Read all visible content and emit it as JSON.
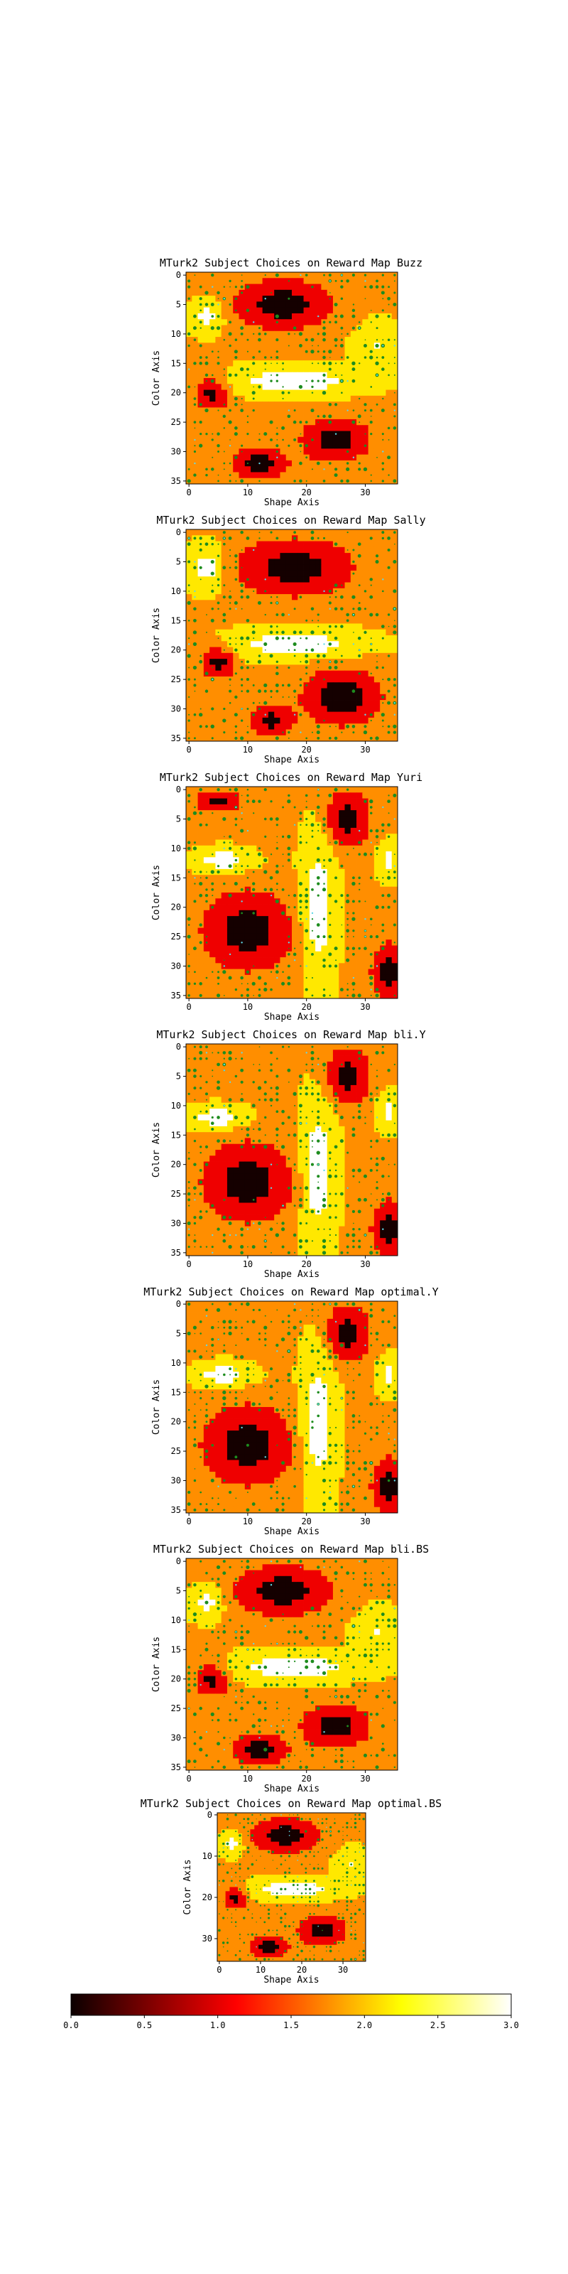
{
  "chart_data": [
    {
      "type": "heatmap",
      "title": "MTurk2 Subject Choices on Reward Map Buzz",
      "xlabel": "Shape Axis",
      "ylabel": "Color Axis",
      "xlim": [
        0,
        35
      ],
      "ylim": [
        35,
        0
      ],
      "xticks": [
        "0",
        "10",
        "20",
        "30"
      ],
      "yticks": [
        "0",
        "5",
        "10",
        "15",
        "20",
        "25",
        "30",
        "35"
      ],
      "grid_size": [
        36,
        36
      ],
      "value_range": [
        0,
        3
      ],
      "colormap": "hot",
      "overlay": "green dots (subject choices, size = frequency) and cyan dots",
      "blobs": [
        {
          "x": 16,
          "y": 5,
          "rx": 9,
          "ry": 4.5,
          "v": 0.1
        },
        {
          "x": 25,
          "y": 28,
          "rx": 6,
          "ry": 4,
          "v": 0.1
        },
        {
          "x": 12,
          "y": 32,
          "rx": 5,
          "ry": 3,
          "v": 0.15
        },
        {
          "x": 4,
          "y": 20,
          "rx": 3,
          "ry": 3,
          "v": 0.15
        },
        {
          "x": 18,
          "y": 18,
          "rx": 12,
          "ry": 2.5,
          "v": 3.0
        },
        {
          "x": 3,
          "y": 7,
          "rx": 3,
          "ry": 3,
          "v": 2.8
        },
        {
          "x": 32,
          "y": 12,
          "rx": 4,
          "ry": 4,
          "v": 2.6
        }
      ]
    },
    {
      "type": "heatmap",
      "title": "MTurk2 Subject Choices on Reward Map Sally",
      "xlabel": "Shape Axis",
      "ylabel": "Color Axis",
      "xlim": [
        0,
        35
      ],
      "ylim": [
        35,
        0
      ],
      "xticks": [
        "0",
        "10",
        "20",
        "30"
      ],
      "yticks": [
        "0",
        "5",
        "10",
        "15",
        "20",
        "25",
        "30",
        "35"
      ],
      "grid_size": [
        36,
        36
      ],
      "value_range": [
        0,
        3
      ],
      "colormap": "hot",
      "overlay": "green dots (subject choices, size = frequency) and cyan dots",
      "blobs": [
        {
          "x": 18,
          "y": 6,
          "rx": 10,
          "ry": 5,
          "v": 0.05
        },
        {
          "x": 26,
          "y": 28,
          "rx": 7,
          "ry": 5,
          "v": 0.05
        },
        {
          "x": 5,
          "y": 22,
          "rx": 3,
          "ry": 3,
          "v": 0.1
        },
        {
          "x": 14,
          "y": 32,
          "rx": 4,
          "ry": 3,
          "v": 0.3
        },
        {
          "x": 18,
          "y": 19,
          "rx": 12,
          "ry": 2.5,
          "v": 3.0
        },
        {
          "x": 3,
          "y": 6,
          "rx": 3,
          "ry": 4,
          "v": 2.8
        }
      ]
    },
    {
      "type": "heatmap",
      "title": "MTurk2 Subject Choices on Reward Map Yuri",
      "xlabel": "Shape Axis",
      "ylabel": "Color Axis",
      "xlim": [
        0,
        35
      ],
      "ylim": [
        35,
        0
      ],
      "xticks": [
        "0",
        "10",
        "20",
        "30"
      ],
      "yticks": [
        "0",
        "5",
        "10",
        "15",
        "20",
        "25",
        "30",
        "35"
      ],
      "grid_size": [
        36,
        36
      ],
      "value_range": [
        0,
        3
      ],
      "colormap": "hot",
      "overlay": "green dots (subject choices, size = frequency) and cyan dots",
      "blobs": [
        {
          "x": 10,
          "y": 24,
          "rx": 8,
          "ry": 7,
          "v": 0.05
        },
        {
          "x": 27,
          "y": 5,
          "rx": 4,
          "ry": 5,
          "v": 0.1
        },
        {
          "x": 34,
          "y": 31,
          "rx": 3,
          "ry": 5,
          "v": 0.05
        },
        {
          "x": 5,
          "y": 2,
          "rx": 4,
          "ry": 2,
          "v": 0.3
        },
        {
          "x": 22,
          "y": 20,
          "rx": 3,
          "ry": 13,
          "v": 3.0
        },
        {
          "x": 6,
          "y": 12,
          "rx": 5,
          "ry": 2,
          "v": 3.0
        },
        {
          "x": 34,
          "y": 12,
          "rx": 2,
          "ry": 3,
          "v": 2.8
        }
      ]
    },
    {
      "type": "heatmap",
      "title": "MTurk2 Subject Choices on Reward Map bli.Y",
      "xlabel": "Shape Axis",
      "ylabel": "Color Axis",
      "xlim": [
        0,
        35
      ],
      "ylim": [
        35,
        0
      ],
      "xticks": [
        "0",
        "10",
        "20",
        "30"
      ],
      "yticks": [
        "0",
        "5",
        "10",
        "15",
        "20",
        "25",
        "30",
        "35"
      ],
      "grid_size": [
        36,
        36
      ],
      "value_range": [
        0,
        3
      ],
      "colormap": "hot",
      "overlay": "green dots (subject choices, size = frequency) and cyan dots",
      "blobs": [
        {
          "x": 10,
          "y": 23,
          "rx": 8,
          "ry": 7,
          "v": 0.05
        },
        {
          "x": 27,
          "y": 5,
          "rx": 4,
          "ry": 5,
          "v": 0.1
        },
        {
          "x": 34,
          "y": 31,
          "rx": 3,
          "ry": 5,
          "v": 0.05
        },
        {
          "x": 22,
          "y": 21,
          "rx": 3,
          "ry": 13,
          "v": 3.0
        },
        {
          "x": 5,
          "y": 12,
          "rx": 5,
          "ry": 2,
          "v": 3.0
        },
        {
          "x": 34,
          "y": 11,
          "rx": 2,
          "ry": 3,
          "v": 2.8
        }
      ]
    },
    {
      "type": "heatmap",
      "title": "MTurk2 Subject Choices on Reward Map optimal.Y",
      "xlabel": "Shape Axis",
      "ylabel": "Color Axis",
      "xlim": [
        0,
        35
      ],
      "ylim": [
        35,
        0
      ],
      "xticks": [
        "0",
        "10",
        "20",
        "30"
      ],
      "yticks": [
        "0",
        "5",
        "10",
        "15",
        "20",
        "25",
        "30",
        "35"
      ],
      "grid_size": [
        36,
        36
      ],
      "value_range": [
        0,
        3
      ],
      "colormap": "hot",
      "overlay": "green dots (subject choices, size = frequency) and cyan dots",
      "blobs": [
        {
          "x": 10,
          "y": 24,
          "rx": 8,
          "ry": 7,
          "v": 0.05
        },
        {
          "x": 27,
          "y": 5,
          "rx": 4,
          "ry": 5,
          "v": 0.1
        },
        {
          "x": 34,
          "y": 31,
          "rx": 3,
          "ry": 5,
          "v": 0.05
        },
        {
          "x": 22,
          "y": 20,
          "rx": 3,
          "ry": 13,
          "v": 3.0
        },
        {
          "x": 6,
          "y": 12,
          "rx": 5,
          "ry": 2,
          "v": 3.0
        },
        {
          "x": 34,
          "y": 12,
          "rx": 2,
          "ry": 3,
          "v": 2.8
        }
      ]
    },
    {
      "type": "heatmap",
      "title": "MTurk2 Subject Choices on Reward Map bli.BS",
      "xlabel": "Shape Axis",
      "ylabel": "Color Axis",
      "xlim": [
        0,
        35
      ],
      "ylim": [
        35,
        0
      ],
      "xticks": [
        "0",
        "10",
        "20",
        "30"
      ],
      "yticks": [
        "0",
        "5",
        "10",
        "15",
        "20",
        "25",
        "30",
        "35"
      ],
      "grid_size": [
        36,
        36
      ],
      "value_range": [
        0,
        3
      ],
      "colormap": "hot",
      "overlay": "green dots (subject choices, size = frequency) and cyan dots",
      "blobs": [
        {
          "x": 16,
          "y": 5,
          "rx": 9,
          "ry": 4.5,
          "v": 0.1
        },
        {
          "x": 25,
          "y": 28,
          "rx": 6,
          "ry": 4,
          "v": 0.1
        },
        {
          "x": 12,
          "y": 32,
          "rx": 5,
          "ry": 3,
          "v": 0.15
        },
        {
          "x": 4,
          "y": 20,
          "rx": 3,
          "ry": 3,
          "v": 0.15
        },
        {
          "x": 18,
          "y": 18,
          "rx": 12,
          "ry": 2.5,
          "v": 3.0
        },
        {
          "x": 3,
          "y": 7,
          "rx": 3,
          "ry": 3,
          "v": 2.8
        },
        {
          "x": 32,
          "y": 12,
          "rx": 4,
          "ry": 4,
          "v": 2.6
        }
      ]
    },
    {
      "type": "heatmap",
      "title": "MTurk2 Subject Choices on Reward Map optimal.BS",
      "xlabel": "Shape Axis",
      "ylabel": "Color Axis",
      "xlim": [
        0,
        35
      ],
      "ylim": [
        35,
        0
      ],
      "xticks": [
        "0",
        "10",
        "20",
        "30"
      ],
      "yticks": [
        "0",
        "10",
        "20",
        "30"
      ],
      "grid_size": [
        36,
        36
      ],
      "value_range": [
        0,
        3
      ],
      "colormap": "hot",
      "overlay": "green dots (subject choices, size = frequency) and cyan dots",
      "blobs": [
        {
          "x": 16,
          "y": 5,
          "rx": 9,
          "ry": 4.5,
          "v": 0.1
        },
        {
          "x": 25,
          "y": 28,
          "rx": 6,
          "ry": 4,
          "v": 0.1
        },
        {
          "x": 12,
          "y": 32,
          "rx": 5,
          "ry": 3,
          "v": 0.15
        },
        {
          "x": 4,
          "y": 20,
          "rx": 3,
          "ry": 3,
          "v": 0.15
        },
        {
          "x": 18,
          "y": 18,
          "rx": 12,
          "ry": 2.5,
          "v": 3.0
        },
        {
          "x": 3,
          "y": 7,
          "rx": 3,
          "ry": 3,
          "v": 2.8
        },
        {
          "x": 32,
          "y": 12,
          "rx": 4,
          "ry": 4,
          "v": 2.6
        }
      ]
    }
  ],
  "colorbar": {
    "min": 0,
    "max": 3,
    "colormap": "hot",
    "ticks": [
      "0.0",
      "0.5",
      "1.0",
      "1.5",
      "2.0",
      "2.5",
      "3.0"
    ],
    "stops": [
      {
        "t": 0.0,
        "color": "#0b0000"
      },
      {
        "t": 0.375,
        "color": "#ff0000"
      },
      {
        "t": 0.75,
        "color": "#ffff00"
      },
      {
        "t": 1.0,
        "color": "#ffffff"
      }
    ]
  },
  "colors": {
    "choice_dot": "#1e8c1e",
    "highlight_dot": "#5fd8e8",
    "axis": "#000000"
  }
}
